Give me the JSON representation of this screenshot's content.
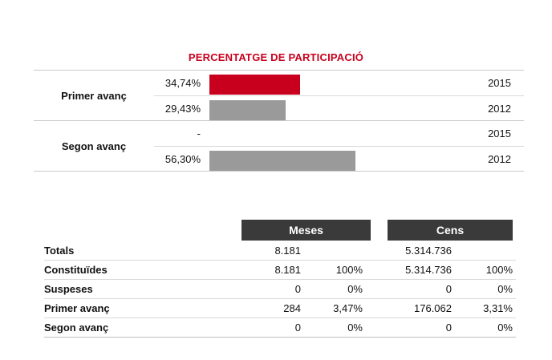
{
  "title": "PERCENTATGE DE PARTICIPACIÓ",
  "colors": {
    "accent": "#c8001e",
    "bar_2015": "#c8001e",
    "bar_2012": "#9a9a9a",
    "header_bg": "#3a3a3a"
  },
  "participation": [
    {
      "label": "Primer avanç",
      "rows": [
        {
          "pct": "34,74%",
          "value": 34.74,
          "year": "2015"
        },
        {
          "pct": "29,43%",
          "value": 29.43,
          "year": "2012"
        }
      ]
    },
    {
      "label": "Segon avanç",
      "rows": [
        {
          "pct": "-",
          "value": 0,
          "year": "2015"
        },
        {
          "pct": "56,30%",
          "value": 56.3,
          "year": "2012"
        }
      ]
    }
  ],
  "stats": {
    "meses_header": "Meses",
    "cens_header": "Cens",
    "rows": [
      {
        "label": "Totals",
        "meses": "8.181",
        "meses_pct": "",
        "cens": "5.314.736",
        "cens_pct": ""
      },
      {
        "label": "Constituïdes",
        "meses": "8.181",
        "meses_pct": "100%",
        "cens": "5.314.736",
        "cens_pct": "100%"
      },
      {
        "label": "Suspeses",
        "meses": "0",
        "meses_pct": "0%",
        "cens": "0",
        "cens_pct": "0%"
      },
      {
        "label": "Primer avanç",
        "meses": "284",
        "meses_pct": "3,47%",
        "cens": "176.062",
        "cens_pct": "3,31%"
      },
      {
        "label": "Segon avanç",
        "meses": "0",
        "meses_pct": "0%",
        "cens": "0",
        "cens_pct": "0%"
      }
    ]
  }
}
